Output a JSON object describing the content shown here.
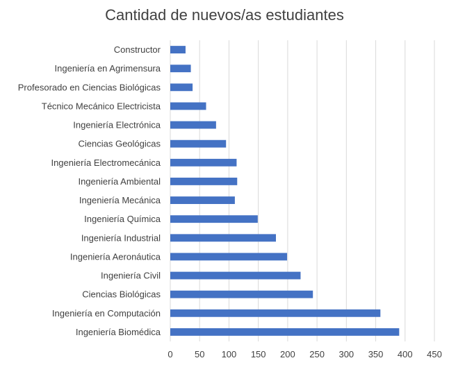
{
  "chart_data": {
    "type": "bar",
    "orientation": "horizontal",
    "title": "Cantidad de nuevos/as estudiantes",
    "xlabel": "",
    "ylabel": "",
    "categories": [
      "Ingeniería Biomédica",
      "Ingeniería en Computación",
      "Ciencias Biológicas",
      "Ingeniería Civil",
      "Ingeniería Aeronáutica",
      "Ingeniería Industrial",
      "Ingeniería Química",
      "Ingeniería Mecánica",
      "Ingeniería Ambiental",
      "Ingeniería Electromecánica",
      "Ciencias Geológicas",
      "Ingeniería Electrónica",
      "Técnico Mecánico Electricista",
      "Profesorado en Ciencias Biológicas",
      "Ingeniería en Agrimensura",
      "Constructor"
    ],
    "values": [
      390,
      358,
      243,
      222,
      199,
      180,
      149,
      110,
      114,
      113,
      95,
      78,
      61,
      38,
      35,
      26
    ],
    "xlim": [
      0,
      450
    ],
    "xticks": [
      "0",
      "50",
      "100",
      "150",
      "200",
      "250",
      "300",
      "350",
      "400",
      "450"
    ],
    "grid": true,
    "legend": "none",
    "bar_color": "#4472c4"
  }
}
